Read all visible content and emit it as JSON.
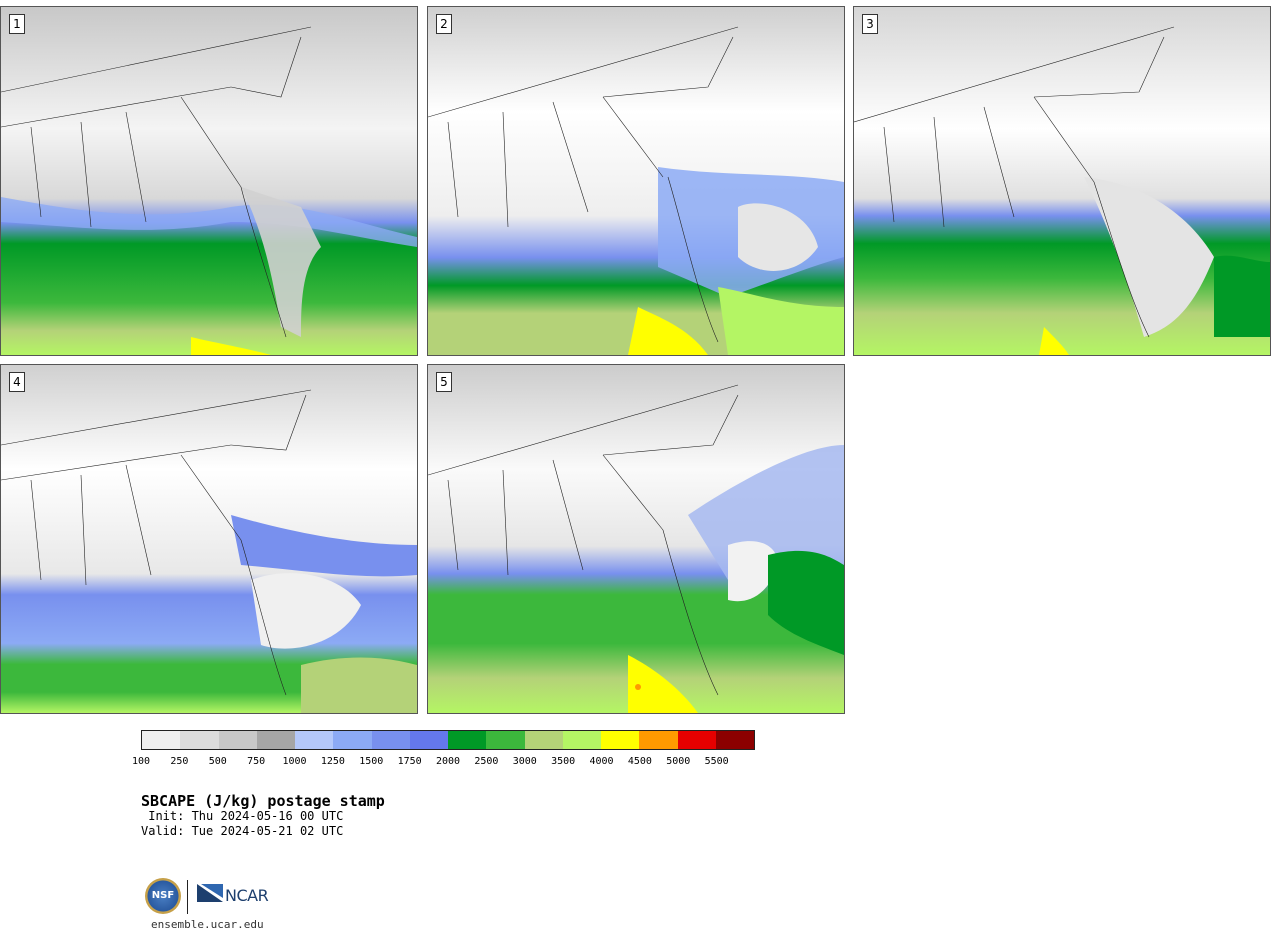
{
  "panels": [
    {
      "number": "1"
    },
    {
      "number": "2"
    },
    {
      "number": "3"
    },
    {
      "number": "4"
    },
    {
      "number": "5"
    }
  ],
  "colorbar": {
    "colors": [
      "#f0f0f0",
      "#dcdcdc",
      "#c8c8c8",
      "#a6a6a6",
      "#b4c8fa",
      "#8caaf5",
      "#7890ee",
      "#6478eb",
      "#009926",
      "#3cb83c",
      "#b4d278",
      "#b4f564",
      "#ffff00",
      "#ff9a00",
      "#e60000",
      "#8c0000"
    ],
    "labels": [
      "100",
      "250",
      "500",
      "750",
      "1000",
      "1250",
      "1500",
      "1750",
      "2000",
      "2500",
      "3000",
      "3500",
      "4000",
      "4500",
      "5000",
      "5500"
    ]
  },
  "title": "SBCAPE (J/kg) postage stamp",
  "init_line": " Init: Thu 2024-05-16 00 UTC",
  "valid_line": "Valid: Tue 2024-05-21 02 UTC",
  "logos": {
    "nsf_text": "NSF",
    "ncar_text": "NCAR",
    "ncar_color": "#1d3f6e"
  },
  "site": "ensemble.ucar.edu"
}
